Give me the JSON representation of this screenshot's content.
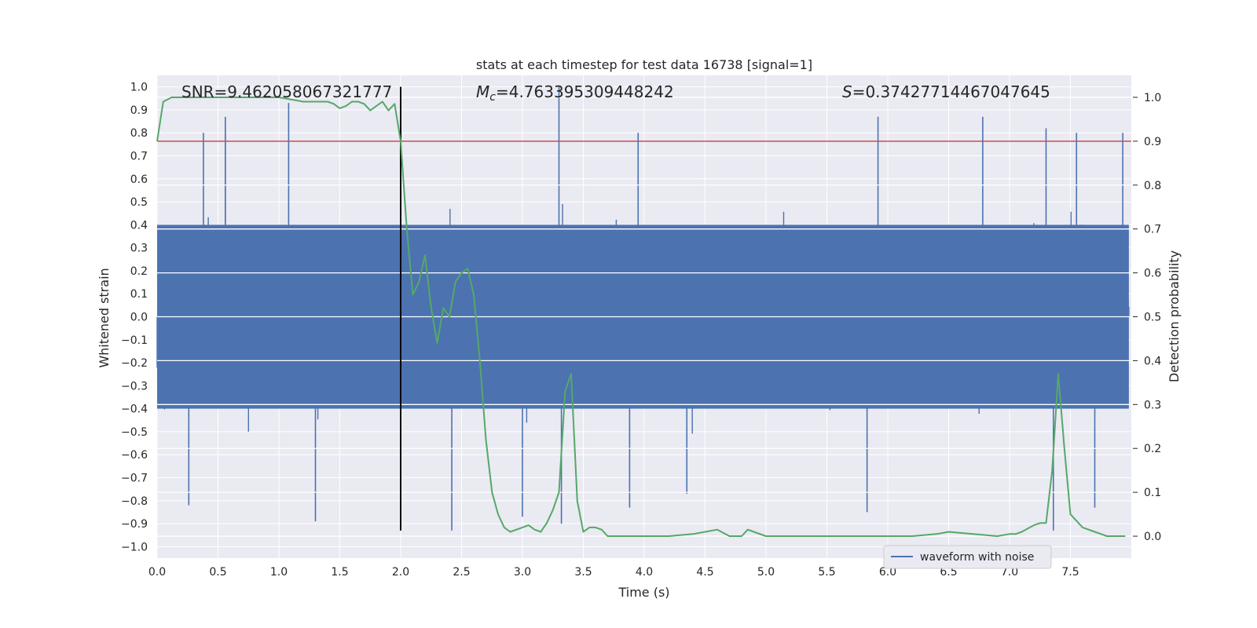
{
  "chart_data": {
    "type": "line",
    "title": "stats at each timestep for test data 16738 [signal=1]",
    "xlabel": "Time (s)",
    "ylabel_left": "Whitened strain",
    "ylabel_right": "Detection probability",
    "xlim": [
      0.0,
      8.0
    ],
    "ylim_left": [
      -1.05,
      1.05
    ],
    "ylim_right": [
      -0.05,
      1.05
    ],
    "x_ticks": [
      "0.0",
      "0.5",
      "1.0",
      "1.5",
      "2.0",
      "2.5",
      "3.0",
      "3.5",
      "4.0",
      "4.5",
      "5.0",
      "5.5",
      "6.0",
      "6.5",
      "7.0",
      "7.5"
    ],
    "y_ticks_left": [
      "1.0",
      "0.9",
      "0.8",
      "0.7",
      "0.6",
      "0.5",
      "0.4",
      "0.3",
      "0.2",
      "0.1",
      "0.0",
      "−0.1",
      "−0.2",
      "−0.3",
      "−0.4",
      "−0.5",
      "−0.6",
      "−0.7",
      "−0.8",
      "−0.9",
      "−1.0"
    ],
    "y_ticks_right": [
      "1.0",
      "0.9",
      "0.8",
      "0.7",
      "0.6",
      "0.5",
      "0.4",
      "0.3",
      "0.2",
      "0.1",
      "0.0"
    ],
    "grid": true,
    "annotations": {
      "snr": "SNR=9.462058067321777",
      "mc_symbol": "M",
      "mc_sub": "c",
      "mc_value": "=4.763395309448242",
      "s_symbol": "S",
      "s_value": "=0.37427714467047645"
    },
    "series": [
      {
        "name": "waveform with noise",
        "color": "#4c72b0",
        "axis": "left",
        "style": "dense noise band with spikes",
        "band_core": [
          -0.4,
          0.4
        ],
        "spikes": [
          {
            "x": 0.56,
            "y": 0.87
          },
          {
            "x": 1.08,
            "y": 0.93
          },
          {
            "x": 3.3,
            "y": 1.0
          },
          {
            "x": 3.95,
            "y": 0.8
          },
          {
            "x": 5.92,
            "y": 0.87
          },
          {
            "x": 6.78,
            "y": 0.87
          },
          {
            "x": 7.3,
            "y": 0.82
          },
          {
            "x": 7.55,
            "y": 0.8
          },
          {
            "x": 7.93,
            "y": 0.8
          },
          {
            "x": 0.38,
            "y": 0.8
          },
          {
            "x": 0.56,
            "y": 0.8
          },
          {
            "x": 0.26,
            "y": -0.82
          },
          {
            "x": 1.3,
            "y": -0.89
          },
          {
            "x": 2.42,
            "y": -0.93
          },
          {
            "x": 3.0,
            "y": -0.87
          },
          {
            "x": 3.32,
            "y": -0.9
          },
          {
            "x": 3.88,
            "y": -0.83
          },
          {
            "x": 4.35,
            "y": -0.77
          },
          {
            "x": 5.83,
            "y": -0.85
          },
          {
            "x": 7.36,
            "y": -0.93
          },
          {
            "x": 7.7,
            "y": -0.83
          }
        ]
      },
      {
        "name": "",
        "color": "#55a868",
        "axis": "right",
        "x": [
          0.0,
          0.05,
          0.12,
          0.2,
          0.4,
          0.6,
          0.8,
          1.0,
          1.2,
          1.4,
          1.45,
          1.5,
          1.55,
          1.6,
          1.65,
          1.7,
          1.75,
          1.8,
          1.85,
          1.9,
          1.95,
          2.0,
          2.05,
          2.1,
          2.15,
          2.2,
          2.25,
          2.3,
          2.35,
          2.4,
          2.45,
          2.5,
          2.55,
          2.6,
          2.65,
          2.7,
          2.75,
          2.8,
          2.85,
          2.9,
          3.0,
          3.05,
          3.1,
          3.15,
          3.2,
          3.25,
          3.3,
          3.35,
          3.4,
          3.45,
          3.5,
          3.55,
          3.6,
          3.65,
          3.7,
          3.8,
          4.0,
          4.2,
          4.4,
          4.5,
          4.6,
          4.7,
          4.8,
          4.85,
          4.9,
          5.0,
          5.2,
          5.4,
          5.6,
          5.8,
          6.0,
          6.2,
          6.4,
          6.5,
          6.7,
          6.9,
          7.0,
          7.05,
          7.1,
          7.2,
          7.25,
          7.3,
          7.35,
          7.4,
          7.45,
          7.5,
          7.6,
          7.7,
          7.8,
          7.9,
          7.95
        ],
        "values": [
          0.9,
          0.99,
          1.0,
          1.0,
          1.0,
          1.0,
          1.0,
          1.0,
          0.99,
          0.99,
          0.985,
          0.975,
          0.98,
          0.99,
          0.99,
          0.985,
          0.97,
          0.98,
          0.99,
          0.97,
          0.985,
          0.9,
          0.7,
          0.55,
          0.58,
          0.64,
          0.52,
          0.44,
          0.52,
          0.5,
          0.58,
          0.6,
          0.61,
          0.55,
          0.4,
          0.22,
          0.1,
          0.05,
          0.02,
          0.01,
          0.02,
          0.025,
          0.015,
          0.01,
          0.03,
          0.06,
          0.1,
          0.33,
          0.37,
          0.08,
          0.01,
          0.02,
          0.02,
          0.015,
          0.0,
          0.0,
          0.0,
          0.0,
          0.005,
          0.01,
          0.015,
          0.0,
          0.0,
          0.015,
          0.01,
          0.0,
          0.0,
          0.0,
          0.0,
          0.0,
          0.0,
          0.0,
          0.005,
          0.01,
          0.005,
          0.0,
          0.005,
          0.005,
          0.01,
          0.025,
          0.03,
          0.03,
          0.15,
          0.37,
          0.2,
          0.05,
          0.02,
          0.01,
          0.0,
          0.0,
          0.0
        ]
      }
    ],
    "hlines": [
      {
        "y": 0.9,
        "axis": "right",
        "color": "#c44e52"
      }
    ],
    "vlines": [
      {
        "x": 2.0,
        "y_range": [
          -0.93,
          1.0
        ],
        "axis": "left",
        "color": "#000000"
      }
    ],
    "legend": {
      "placement": "lower-right",
      "entries": [
        "waveform with noise"
      ]
    }
  }
}
